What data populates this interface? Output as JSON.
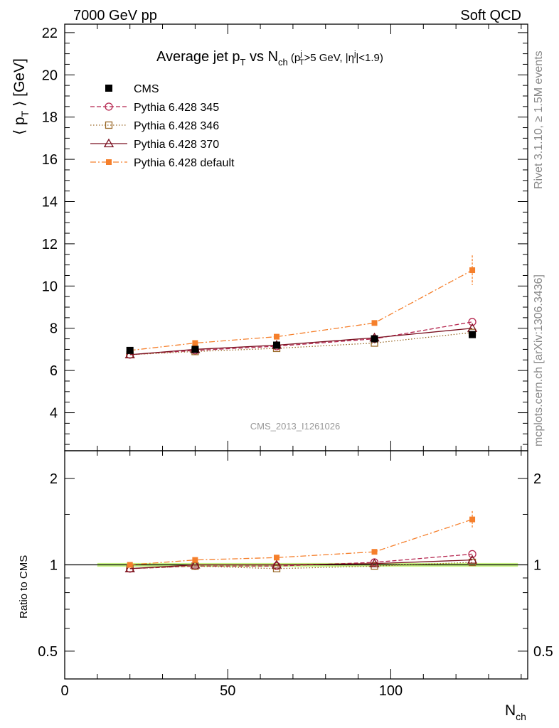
{
  "header": {
    "left": "7000 GeV pp",
    "right": "Soft QCD"
  },
  "side_labels": {
    "upper": "Rivet 3.1.10, ≥ 1.5M events",
    "lower": "mcplots.cern.ch [arXiv:1306.3436]"
  },
  "watermark": "CMS_2013_I1261026",
  "chart_data": [
    {
      "type": "scatter",
      "title": {
        "main": "Average jet p",
        "main_sub": "T",
        "vs": " vs N",
        "vs_sub": "ch",
        "cut_open": " (p",
        "cut_sup": "j",
        "cut_sub": "T",
        "cut_mid": ">5 GeV, |η",
        "cut_sup2": "j",
        "cut_close": "|<1.9)"
      },
      "ylabel": {
        "left": "⟨ p",
        "sub": "T",
        "right": " ⟩ [GeV]"
      },
      "xlabel": {
        "main": "N",
        "sub": "ch"
      },
      "xlim": [
        0,
        142
      ],
      "ylim": [
        2.2,
        22.4
      ],
      "x_ticks": [
        0,
        50,
        100
      ],
      "y_ticks": [
        4,
        6,
        8,
        10,
        12,
        14,
        16,
        18,
        20,
        22
      ],
      "x": [
        20,
        40,
        65,
        95,
        125
      ],
      "series": [
        {
          "name": "CMS",
          "color": "#000000",
          "marker": "filled-square",
          "line": "none",
          "values": [
            6.95,
            7.0,
            7.2,
            7.5,
            7.7
          ],
          "errors": [
            0.05,
            0.05,
            0.05,
            0.06,
            0.1
          ]
        },
        {
          "name": "Pythia 6.428 345",
          "color": "#b5254e",
          "marker": "open-circle",
          "line": "dashed",
          "values": [
            6.75,
            6.95,
            7.15,
            7.5,
            8.3
          ]
        },
        {
          "name": "Pythia 6.428 346",
          "color": "#9a6a2a",
          "marker": "open-square",
          "line": "dotted",
          "values": [
            6.75,
            6.9,
            7.05,
            7.3,
            7.8
          ]
        },
        {
          "name": "Pythia 6.428 370",
          "color": "#7a1020",
          "marker": "open-triangle",
          "line": "solid",
          "values": [
            6.75,
            7.0,
            7.2,
            7.55,
            8.0
          ]
        },
        {
          "name": "Pythia 6.428 default",
          "color": "#f57f2b",
          "marker": "filled-square-small",
          "line": "dashdot",
          "values": [
            6.95,
            7.3,
            7.6,
            8.25,
            10.75
          ],
          "errors": [
            0.1,
            0.1,
            0.1,
            0.1,
            0.7
          ]
        }
      ]
    },
    {
      "type": "scatter",
      "ylabel": "Ratio to CMS",
      "scale": "log",
      "ylim": [
        0.4,
        2.5
      ],
      "y_ticks": [
        0.5,
        1,
        2
      ],
      "y_tick_labels": [
        "0.5",
        "1",
        "2"
      ],
      "x": [
        20,
        40,
        65,
        95,
        125
      ],
      "band": {
        "color": "#b6f25c",
        "half_width": 0.015
      },
      "series": [
        {
          "name": "Pythia 6.428 345",
          "values": [
            0.97,
            0.99,
            0.99,
            1.02,
            1.09
          ]
        },
        {
          "name": "Pythia 6.428 346",
          "values": [
            0.97,
            0.99,
            0.97,
            0.99,
            1.02
          ]
        },
        {
          "name": "Pythia 6.428 370",
          "values": [
            0.97,
            1.0,
            1.0,
            1.01,
            1.04
          ]
        },
        {
          "name": "Pythia 6.428 default",
          "values": [
            1.0,
            1.04,
            1.06,
            1.11,
            1.44
          ],
          "errors": [
            0.01,
            0.01,
            0.01,
            0.01,
            0.1
          ]
        }
      ]
    }
  ]
}
